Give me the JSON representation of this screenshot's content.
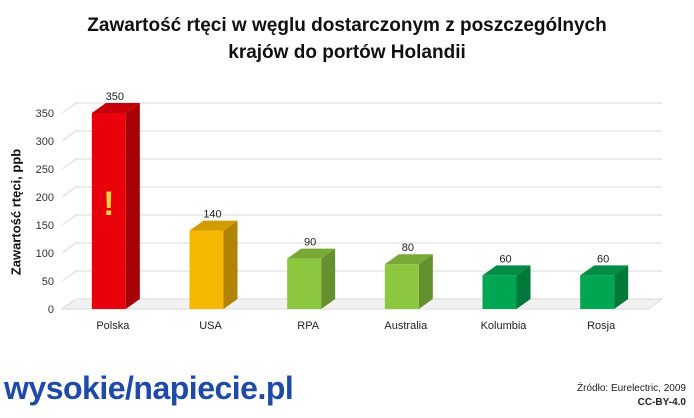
{
  "chart_data": {
    "type": "bar",
    "title_line1": "Zawartość rtęci w węglu dostarczonym  z poszczególnych",
    "title_line2": "krajów do portów  Holandii",
    "xlabel": "",
    "ylabel": "Zawartość rtęci, ppb",
    "ylim": [
      0,
      350
    ],
    "yticks": [
      0,
      50,
      100,
      150,
      200,
      250,
      300,
      350
    ],
    "grid": true,
    "categories": [
      "Polska",
      "USA",
      "RPA",
      "Australia",
      "Kolumbia",
      "Rosja"
    ],
    "values": [
      350,
      140,
      90,
      80,
      60,
      60
    ],
    "colors": [
      "#e8000a",
      "#f5b800",
      "#8dc63f",
      "#8dc63f",
      "#00a651",
      "#00a651"
    ],
    "annotation": "!"
  },
  "logo": {
    "part1": "wysokie",
    "part2": "napiecie.pl"
  },
  "source": {
    "text": "Źródło: Eurelectric, 2009",
    "license": "CC-BY-4.0"
  }
}
